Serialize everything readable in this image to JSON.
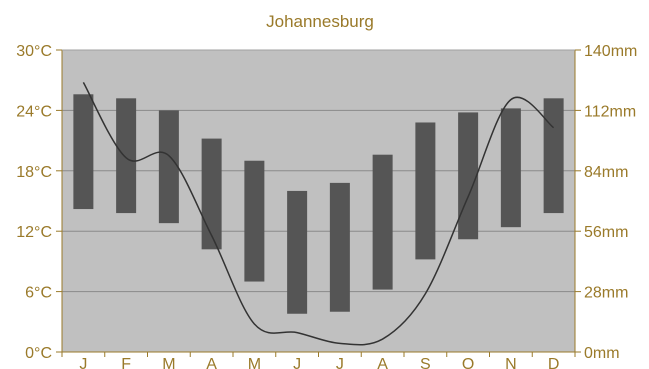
{
  "chart_data": {
    "type": "bar",
    "title": "Johannesburg",
    "categories": [
      "J",
      "F",
      "M",
      "A",
      "M",
      "J",
      "J",
      "A",
      "S",
      "O",
      "N",
      "D"
    ],
    "temperature_range": {
      "unit": "°C",
      "axis": "left",
      "ylim": [
        0,
        30
      ],
      "ticks": [
        0,
        6,
        12,
        18,
        24,
        30
      ],
      "tick_labels": [
        "0°C",
        "6°C",
        "12°C",
        "18°C",
        "24°C",
        "30°C"
      ],
      "low": [
        14.2,
        13.8,
        12.8,
        10.2,
        7.0,
        3.8,
        4.0,
        6.2,
        9.2,
        11.2,
        12.4,
        13.8
      ],
      "high": [
        25.6,
        25.2,
        24.0,
        21.2,
        19.0,
        16.0,
        16.8,
        19.6,
        22.8,
        23.8,
        24.2,
        25.2
      ]
    },
    "precipitation": {
      "type": "line",
      "unit": "mm",
      "axis": "right",
      "ylim": [
        0,
        140
      ],
      "ticks": [
        0,
        28,
        56,
        84,
        112,
        140
      ],
      "tick_labels": [
        "0mm",
        "28mm",
        "56mm",
        "84mm",
        "112mm",
        "140mm"
      ],
      "values": [
        125,
        90,
        91,
        54,
        13,
        9,
        4,
        6,
        27,
        72,
        117,
        104
      ]
    },
    "grid": true,
    "colors": {
      "plot_background": "#c0c0c0",
      "bar": "#555555",
      "line": "#333333",
      "axis": "#9a7a2a",
      "grid": "#8a8a8a"
    }
  }
}
